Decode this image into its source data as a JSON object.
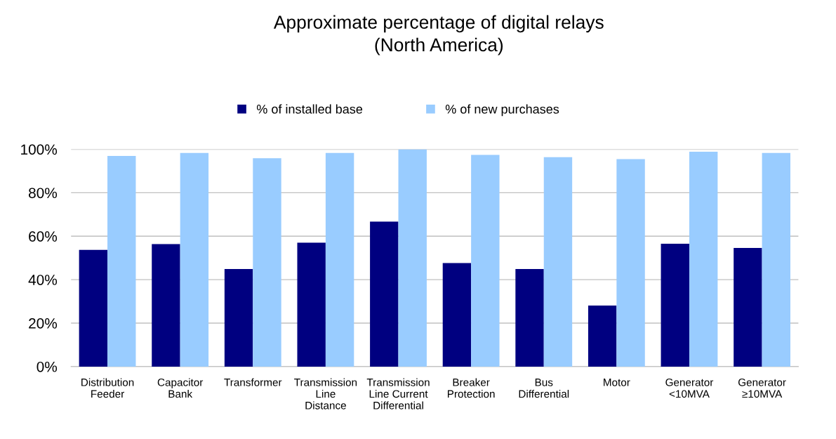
{
  "chart_data": {
    "type": "bar",
    "title": "Approximate percentage of digital relays\n(North America)",
    "categories": [
      "Distribution\nFeeder",
      "Capacitor\nBank",
      "Transformer",
      "Transmission\nLine\nDistance",
      "Transmission\nLine Current\nDifferential",
      "Breaker\nProtection",
      "Bus\nDifferential",
      "Motor",
      "Generator\n<10MVA",
      "Generator\n≥10MVA"
    ],
    "series": [
      {
        "name": "% of installed base",
        "color": "#000080",
        "values": [
          53.7,
          56.4,
          44.9,
          57,
          66.7,
          47.6,
          44.9,
          28.1,
          56.5,
          54.6
        ]
      },
      {
        "name": "% of new purchases",
        "color": "#99ccff",
        "values": [
          96.9,
          98.3,
          95.9,
          98.3,
          100,
          97.4,
          96.4,
          95.5,
          98.9,
          98.3
        ]
      }
    ],
    "ylim": [
      0,
      100
    ],
    "yticks": [
      {
        "value": 0,
        "label": "0%"
      },
      {
        "value": 20,
        "label": "20%"
      },
      {
        "value": 40,
        "label": "40%"
      },
      {
        "value": 60,
        "label": "60%"
      },
      {
        "value": 80,
        "label": "80%"
      },
      {
        "value": 100,
        "label": "100%"
      }
    ],
    "grid": "y",
    "legend": "top"
  }
}
